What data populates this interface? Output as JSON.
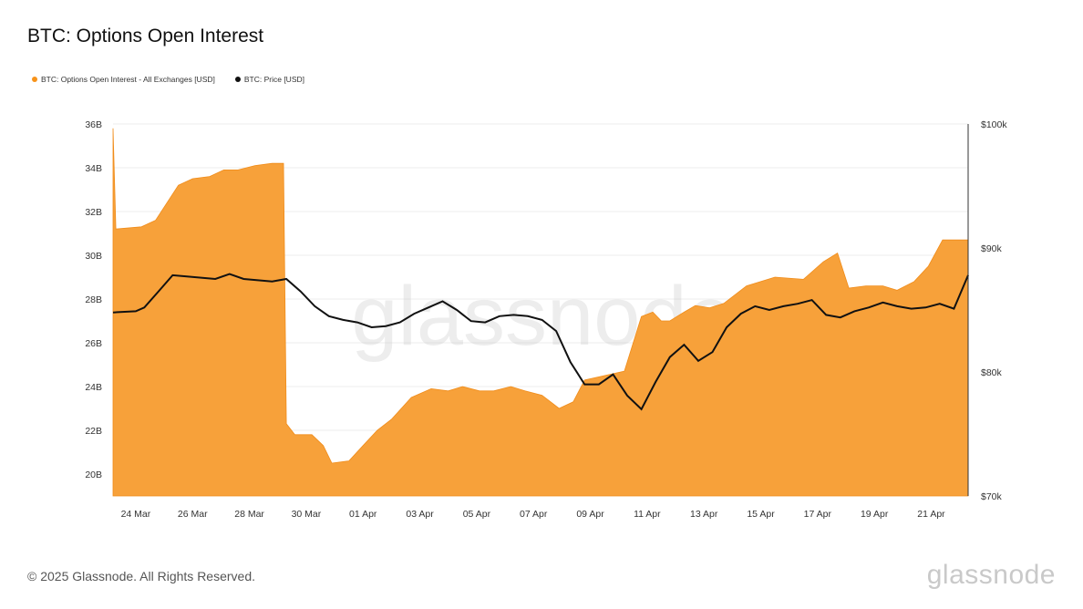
{
  "title": "BTC: Options Open Interest",
  "legend": [
    {
      "label": "BTC: Options Open Interest - All Exchanges [USD]",
      "color": "#f7931a"
    },
    {
      "label": "BTC: Price [USD]",
      "color": "#111111"
    }
  ],
  "footer": "© 2025 Glassnode. All Rights Reserved.",
  "logo": "glassnode",
  "watermark": "glassnode",
  "chart_data": {
    "type": "area",
    "title": "BTC: Options Open Interest",
    "x_ticks": [
      "24 Mar",
      "26 Mar",
      "28 Mar",
      "30 Mar",
      "01 Apr",
      "03 Apr",
      "05 Apr",
      "07 Apr",
      "09 Apr",
      "11 Apr",
      "13 Apr",
      "15 Apr",
      "17 Apr",
      "19 Apr",
      "21 Apr"
    ],
    "x_range_days": [
      -0.8,
      29.3
    ],
    "y_left": {
      "ticks": [
        "20B",
        "22B",
        "24B",
        "26B",
        "28B",
        "30B",
        "32B",
        "34B",
        "36B"
      ],
      "range": [
        19,
        36
      ],
      "unit": "B USD"
    },
    "y_right": {
      "ticks": [
        "$70k",
        "$80k",
        "$90k",
        "$100k"
      ],
      "range": [
        70,
        100
      ],
      "unit": "k USD"
    },
    "grid": true,
    "legend_position": "top-left",
    "series": [
      {
        "name": "BTC: Options Open Interest - All Exchanges [USD]",
        "axis": "left",
        "color": "#f7931a",
        "x": [
          "22 Mar",
          "23 Mar",
          "23 Mar",
          "24 Mar",
          "24 Mar",
          "25 Mar",
          "25 Mar",
          "26 Mar",
          "26 Mar",
          "27 Mar",
          "27 Mar",
          "28 Mar",
          "28 Mar",
          "29 Mar",
          "29 Mar",
          "30 Mar",
          "30 Mar",
          "31 Mar",
          "31 Mar",
          "01 Apr",
          "01 Apr",
          "02 Apr",
          "02 Apr",
          "03 Apr",
          "03 Apr",
          "04 Apr",
          "04 Apr",
          "05 Apr",
          "05 Apr",
          "06 Apr",
          "06 Apr",
          "07 Apr",
          "07 Apr",
          "08 Apr",
          "08 Apr",
          "09 Apr",
          "09 Apr",
          "10 Apr",
          "10 Apr",
          "11 Apr",
          "11 Apr",
          "12 Apr",
          "12 Apr",
          "13 Apr",
          "13 Apr",
          "14 Apr",
          "14 Apr",
          "15 Apr",
          "15 Apr",
          "16 Apr",
          "16 Apr",
          "17 Apr",
          "17 Apr",
          "18 Apr",
          "18 Apr",
          "19 Apr",
          "19 Apr",
          "20 Apr",
          "20 Apr",
          "21 Apr",
          "21 Apr",
          "22 Apr",
          "22 Apr"
        ],
        "x_days": [
          -0.8,
          -0.7,
          0.2,
          0.7,
          1.5,
          2.0,
          2.6,
          3.1,
          3.6,
          4.2,
          4.8,
          5.2,
          5.3,
          5.6,
          6.2,
          6.6,
          6.9,
          7.5,
          8.0,
          8.5,
          9.0,
          9.7,
          10.4,
          11.0,
          11.5,
          12.1,
          12.6,
          13.2,
          13.7,
          14.3,
          14.9,
          15.4,
          15.8,
          16.5,
          17.2,
          17.8,
          18.2,
          18.5,
          18.8,
          19.3,
          19.7,
          20.2,
          20.7,
          21.5,
          22.5,
          23.5,
          24.2,
          24.7,
          25.1,
          25.7,
          26.3,
          26.8,
          27.4,
          27.9,
          28.4,
          29.0,
          29.3,
          28.9,
          29.1,
          29.0,
          29.2,
          29.3,
          29.3
        ],
        "values": [
          35.8,
          31.2,
          31.3,
          31.6,
          33.2,
          33.5,
          33.6,
          33.9,
          33.9,
          34.1,
          34.2,
          34.2,
          22.3,
          21.8,
          21.8,
          21.3,
          20.5,
          20.6,
          21.3,
          22.0,
          22.5,
          23.5,
          23.9,
          23.8,
          24.0,
          23.8,
          23.8,
          24.0,
          23.8,
          23.6,
          23.0,
          23.3,
          24.3,
          24.5,
          24.7,
          27.2,
          27.4,
          27.0,
          27.0,
          27.4,
          27.7,
          27.6,
          27.8,
          28.6,
          29.0,
          28.9,
          29.7,
          30.1,
          28.5,
          28.6,
          28.6,
          28.4,
          28.8,
          29.5,
          30.7,
          30.7,
          30.7,
          30.7,
          30.7,
          30.7,
          30.7,
          30.7,
          30.7
        ]
      },
      {
        "name": "BTC: Price [USD]",
        "axis": "right",
        "color": "#111111",
        "x_days": [
          -0.8,
          0.0,
          0.3,
          0.8,
          1.3,
          1.8,
          2.3,
          2.8,
          3.3,
          3.8,
          4.3,
          4.8,
          5.3,
          5.8,
          6.3,
          6.8,
          7.3,
          7.8,
          8.3,
          8.8,
          9.3,
          9.8,
          10.3,
          10.8,
          11.3,
          11.8,
          12.3,
          12.8,
          13.3,
          13.8,
          14.3,
          14.8,
          15.3,
          15.8,
          16.3,
          16.8,
          17.3,
          17.8,
          18.3,
          18.8,
          19.3,
          19.8,
          20.3,
          20.8,
          21.3,
          21.8,
          22.3,
          22.8,
          23.3,
          23.8,
          24.3,
          24.8,
          25.3,
          25.8,
          26.3,
          26.8,
          27.3,
          27.8,
          28.3,
          28.8,
          29.3
        ],
        "values": [
          84.8,
          84.9,
          85.2,
          86.5,
          87.8,
          87.7,
          87.6,
          87.5,
          87.9,
          87.5,
          87.4,
          87.3,
          87.5,
          86.5,
          85.3,
          84.5,
          84.2,
          84.0,
          83.6,
          83.7,
          84.0,
          84.7,
          85.2,
          85.7,
          85.0,
          84.1,
          84.0,
          84.5,
          84.6,
          84.5,
          84.2,
          83.3,
          80.8,
          79.0,
          79.0,
          79.8,
          78.1,
          77.0,
          79.2,
          81.2,
          82.2,
          80.9,
          81.6,
          83.6,
          84.7,
          85.3,
          85.0,
          85.3,
          85.5,
          85.8,
          84.6,
          84.4,
          84.9,
          85.2,
          85.6,
          85.3,
          85.1,
          85.2,
          85.5,
          85.1,
          87.8
        ]
      }
    ]
  }
}
